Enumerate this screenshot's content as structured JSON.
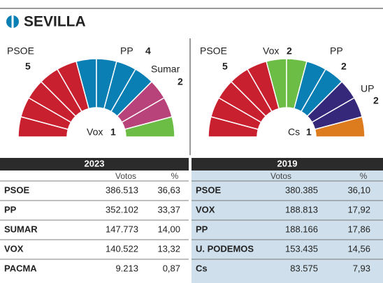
{
  "header": {
    "title": "SEVILLA"
  },
  "hemicycles": [
    {
      "parties": [
        {
          "name": "PSOE",
          "seats": 5,
          "color": "#c8202f"
        },
        {
          "name": "PP",
          "seats": 4,
          "color": "#0a7fb4"
        },
        {
          "name": "Sumar",
          "seats": 2,
          "color": "#b8437a"
        },
        {
          "name": "Vox",
          "seats": 1,
          "color": "#6cbd45"
        }
      ]
    },
    {
      "parties": [
        {
          "name": "PSOE",
          "seats": 5,
          "color": "#c8202f"
        },
        {
          "name": "Vox",
          "seats": 2,
          "color": "#6cbd45"
        },
        {
          "name": "PP",
          "seats": 2,
          "color": "#0a7fb4"
        },
        {
          "name": "UP",
          "seats": 2,
          "color": "#35287a"
        },
        {
          "name": "Cs",
          "seats": 1,
          "color": "#dd7c1e"
        }
      ]
    }
  ],
  "tables": [
    {
      "year": "2023",
      "columns": [
        "Votos",
        "%"
      ],
      "rows": [
        [
          "PSOE",
          "386.513",
          "36,63"
        ],
        [
          "PP",
          "352.102",
          "33,37"
        ],
        [
          "SUMAR",
          "147.773",
          "14,00"
        ],
        [
          "VOX",
          "140.522",
          "13,32"
        ],
        [
          "PACMA",
          "9.213",
          "0,87"
        ]
      ]
    },
    {
      "year": "2019",
      "columns": [
        "Votos",
        "%"
      ],
      "rows": [
        [
          "PSOE",
          "380.385",
          "36,10"
        ],
        [
          "VOX",
          "188.813",
          "17,92"
        ],
        [
          "PP",
          "188.166",
          "17,86"
        ],
        [
          "U. PODEMOS",
          "153.435",
          "14,56"
        ],
        [
          "Cs",
          "83.575",
          "7,93"
        ]
      ]
    }
  ]
}
